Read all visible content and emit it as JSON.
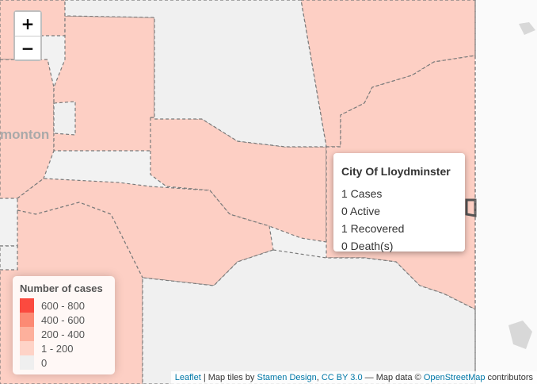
{
  "map": {
    "city_label": "monton",
    "colors": {
      "cases_region": "#fdcfc4",
      "zero_region": "#f0f0f0",
      "border": "#7a7a7a"
    }
  },
  "zoom": {
    "in_label": "+",
    "out_label": "−"
  },
  "popup": {
    "title": "City Of Lloydminster",
    "cases": "1 Cases",
    "active": "0 Active",
    "recovered": "1 Recovered",
    "deaths": "0 Death(s)"
  },
  "legend": {
    "title": "Number of cases",
    "items": [
      {
        "label": "600 - 800",
        "color": "#fb4a3f"
      },
      {
        "label": "400 - 600",
        "color": "#fc8a74"
      },
      {
        "label": "200 - 400",
        "color": "#fdb09c"
      },
      {
        "label": "1 - 200",
        "color": "#fed3c7"
      },
      {
        "label": "0",
        "color": "#efefef"
      }
    ]
  },
  "attribution": {
    "leaflet": "Leaflet",
    "sep": " | Map tiles by ",
    "stamen": "Stamen Design",
    "comma": ", ",
    "license": "CC BY 3.0",
    "mapdata": " — Map data © ",
    "osm": "OpenStreetMap",
    "contributors": " contributors"
  }
}
